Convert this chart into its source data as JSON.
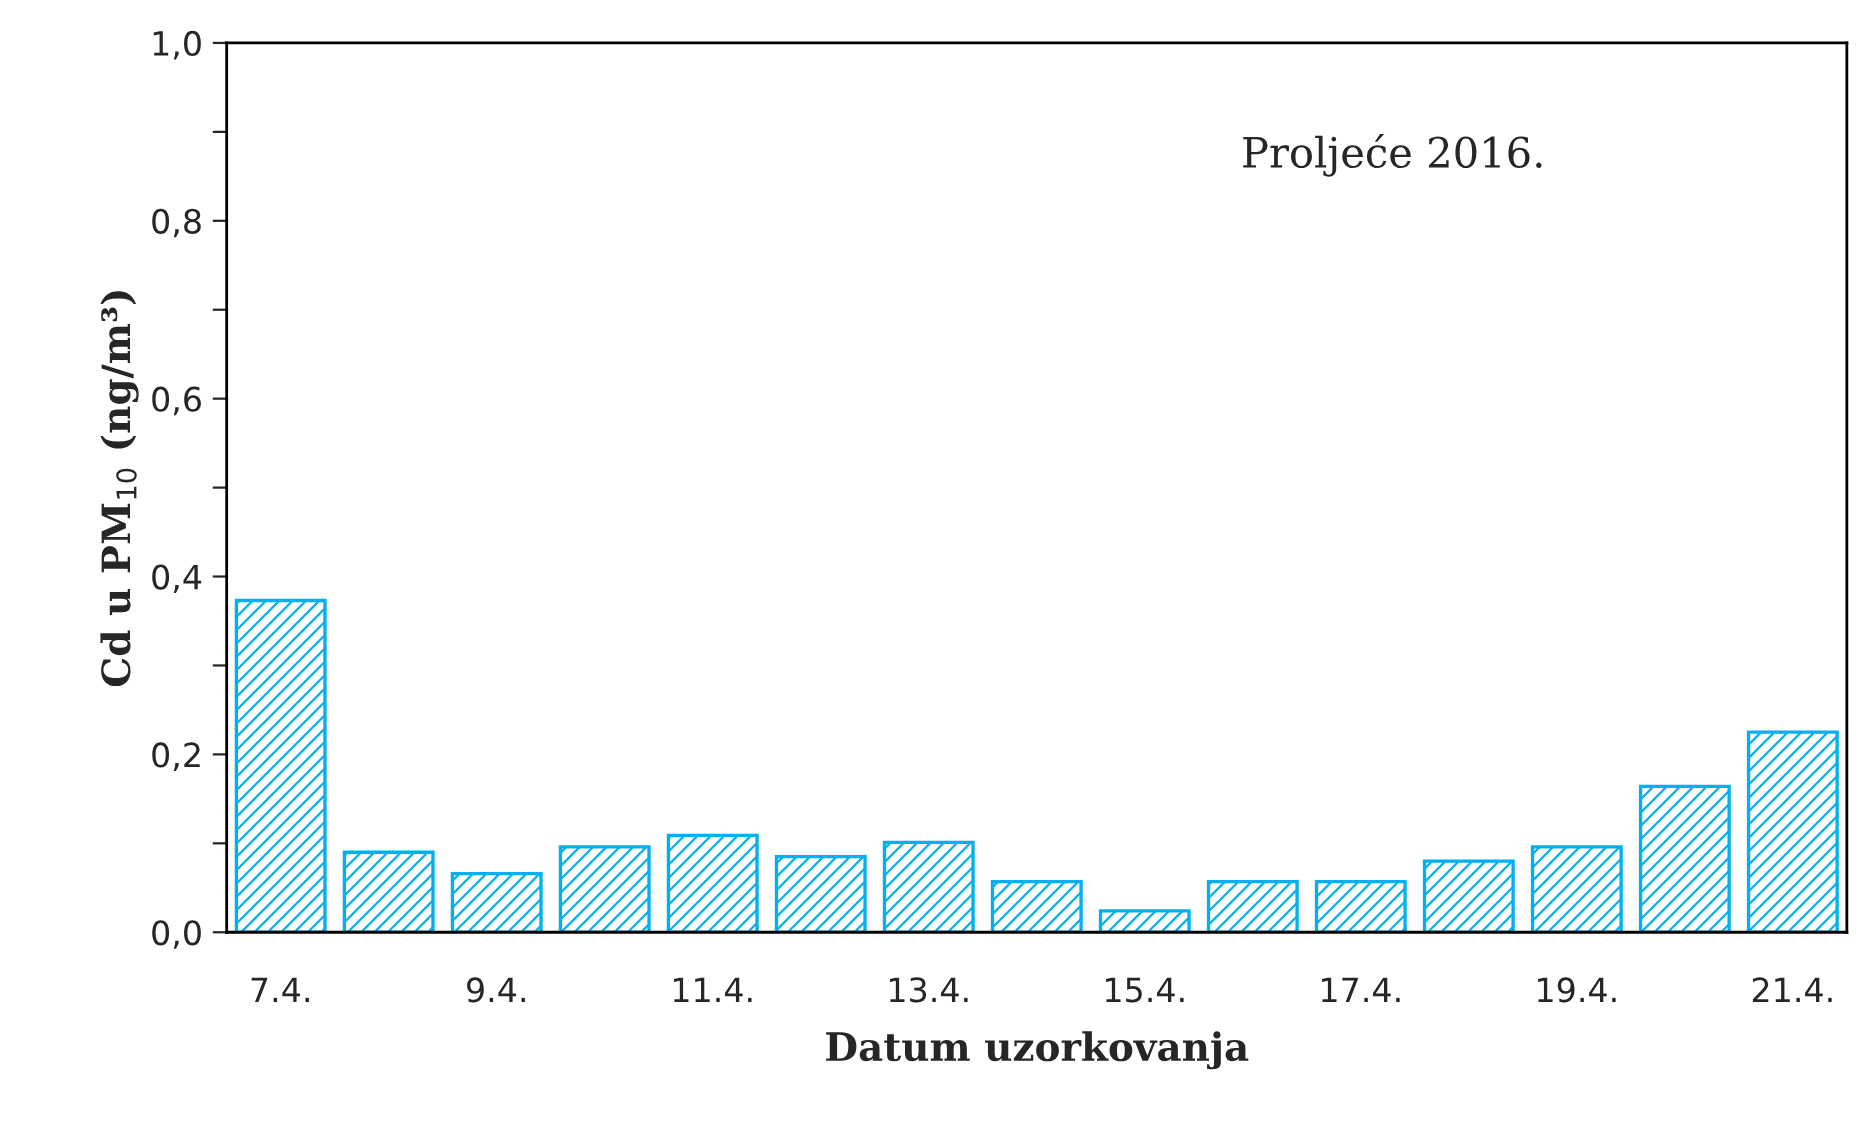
{
  "chart_data": {
    "type": "bar",
    "categories": [
      "7.4.",
      null,
      "9.4.",
      null,
      "11.4.",
      null,
      "13.4.",
      null,
      "15.4.",
      null,
      "17.4.",
      null,
      "19.4.",
      null,
      "21.4."
    ],
    "values": [
      0.373,
      0.09,
      0.066,
      0.096,
      0.109,
      0.085,
      0.101,
      0.057,
      0.024,
      0.057,
      0.057,
      0.08,
      0.096,
      0.164,
      0.225
    ],
    "color": "#00b0f0",
    "xlabel": "Datum uzorkovanja",
    "ylabel": "Cd u PM$_{10}$ (ng/m³)",
    "annotations": [
      "Proljeće 2016."
    ],
    "ylim": [
      0,
      1.0
    ],
    "yticks": [
      {
        "value": 0,
        "label": "0,0"
      },
      {
        "value": 0.1,
        "label": null
      },
      {
        "value": 0.2,
        "label": "0,2"
      },
      {
        "value": 0.3,
        "label": null
      },
      {
        "value": 0.4,
        "label": "0,4"
      },
      {
        "value": 0.5,
        "label": null
      },
      {
        "value": 0.6,
        "label": "0,6"
      },
      {
        "value": 0.7,
        "label": null
      },
      {
        "value": 0.8,
        "label": "0,8"
      },
      {
        "value": 0.9,
        "label": null
      },
      {
        "value": 1.0,
        "label": "1,0"
      }
    ],
    "grid": false,
    "legend": false
  }
}
